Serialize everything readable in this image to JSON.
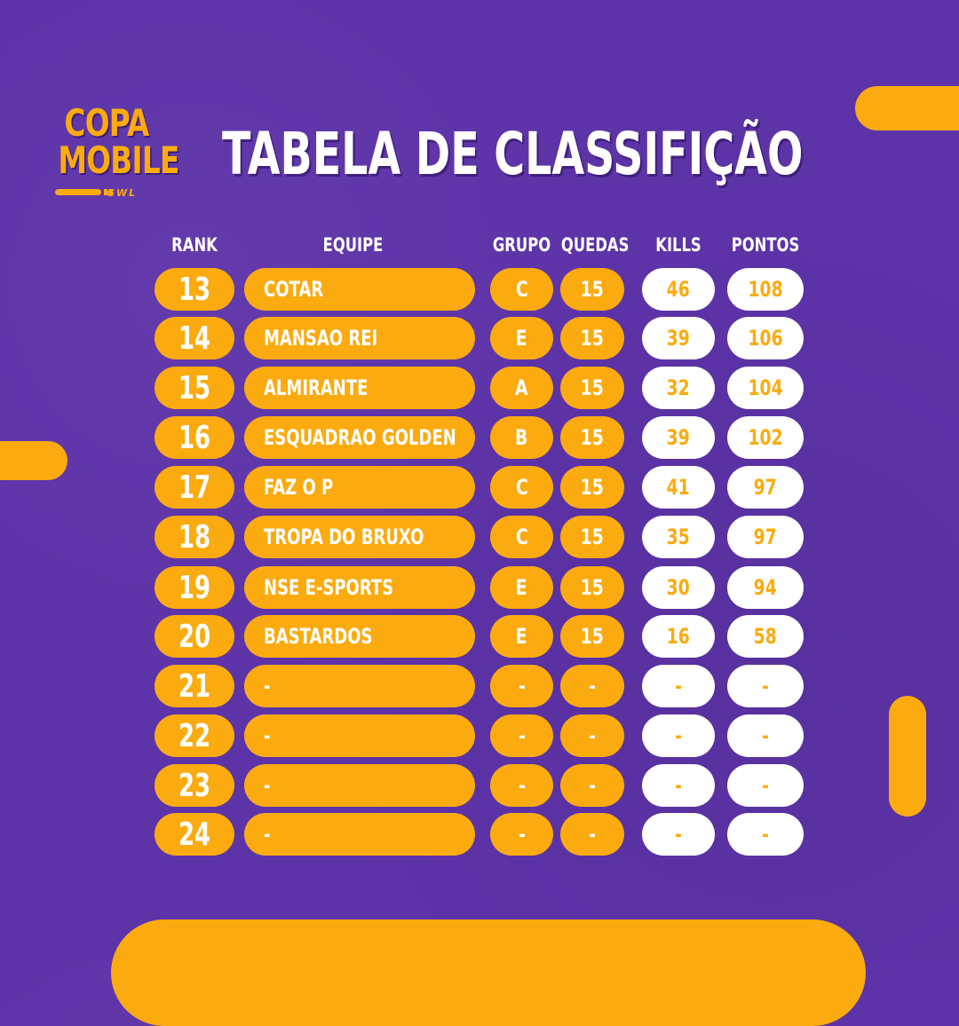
{
  "brand": {
    "logo_line1": "COPA",
    "logo_line2": "MOBILE",
    "logo_sub": "GWL"
  },
  "title": "TABELA DE CLASSIFIÇÃO",
  "colors": {
    "background": "#5d33a8",
    "accent": "#fbab0f",
    "pill_light": "#ffffff"
  },
  "table": {
    "headers": {
      "rank": "RANK",
      "team": "EQUIPE",
      "grupo": "GRUPO",
      "quedas": "QUEDAS",
      "kills": "KILLS",
      "pontos": "PONTOS"
    },
    "rows": [
      {
        "rank": "13",
        "team": "COTAR",
        "grupo": "C",
        "quedas": "15",
        "kills": "46",
        "pontos": "108"
      },
      {
        "rank": "14",
        "team": "MANSAO REI",
        "grupo": "E",
        "quedas": "15",
        "kills": "39",
        "pontos": "106"
      },
      {
        "rank": "15",
        "team": "ALMIRANTE",
        "grupo": "A",
        "quedas": "15",
        "kills": "32",
        "pontos": "104"
      },
      {
        "rank": "16",
        "team": "ESQUADRAO GOLDEN",
        "grupo": "B",
        "quedas": "15",
        "kills": "39",
        "pontos": "102"
      },
      {
        "rank": "17",
        "team": "FAZ O P",
        "grupo": "C",
        "quedas": "15",
        "kills": "41",
        "pontos": "97"
      },
      {
        "rank": "18",
        "team": "TROPA DO BRUXO",
        "grupo": "C",
        "quedas": "15",
        "kills": "35",
        "pontos": "97"
      },
      {
        "rank": "19",
        "team": "NSE E-SPORTS",
        "grupo": "E",
        "quedas": "15",
        "kills": "30",
        "pontos": "94"
      },
      {
        "rank": "20",
        "team": "BASTARDOS",
        "grupo": "E",
        "quedas": "15",
        "kills": "16",
        "pontos": "58"
      },
      {
        "rank": "21",
        "team": "-",
        "grupo": "-",
        "quedas": "-",
        "kills": "-",
        "pontos": "-"
      },
      {
        "rank": "22",
        "team": "-",
        "grupo": "-",
        "quedas": "-",
        "kills": "-",
        "pontos": "-"
      },
      {
        "rank": "23",
        "team": "-",
        "grupo": "-",
        "quedas": "-",
        "kills": "-",
        "pontos": "-"
      },
      {
        "rank": "24",
        "team": "-",
        "grupo": "-",
        "quedas": "-",
        "kills": "-",
        "pontos": "-"
      }
    ]
  }
}
